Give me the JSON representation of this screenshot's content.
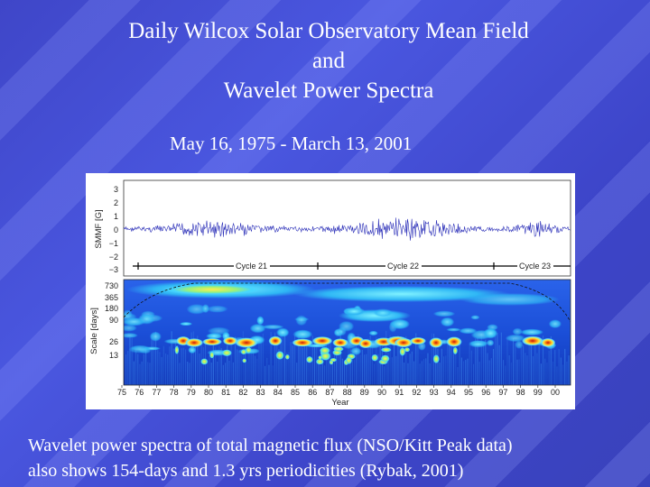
{
  "title": {
    "line1": "Daily Wilcox Solar Observatory Mean Field",
    "line2": "and",
    "line3": "Wavelet Power Spectra"
  },
  "date_range": "May 16, 1975 - March 13, 2001",
  "figure": {
    "top_panel": {
      "ylabel": "SMMF [G]",
      "yticks": [
        "3",
        "2",
        "1",
        "0",
        "−1",
        "−2",
        "−3"
      ],
      "cycles": [
        "Cycle 21",
        "Cycle 22",
        "Cycle 23"
      ]
    },
    "bottom_panel": {
      "ylabel": "Scale [days]",
      "yticks": [
        "730",
        "365",
        "180",
        "90",
        "26",
        "13"
      ]
    },
    "xticks": [
      "75",
      "76",
      "77",
      "78",
      "79",
      "80",
      "81",
      "82",
      "83",
      "84",
      "85",
      "86",
      "87",
      "88",
      "89",
      "90",
      "91",
      "92",
      "93",
      "94",
      "95",
      "96",
      "97",
      "98",
      "99",
      "00"
    ],
    "xlabel": "Year"
  },
  "caption": {
    "line1": "Wavelet power spectra of total magnetic flux (NSO/Kitt Peak data)",
    "line2": "also shows 154-days and 1.3 yrs periodicities (Rybak, 2001)"
  },
  "colors": {
    "background": "#4350d4",
    "spectrum_low": "#1a4fd6",
    "spectrum_high": "#e02010",
    "signal": "#2b2fb8"
  }
}
